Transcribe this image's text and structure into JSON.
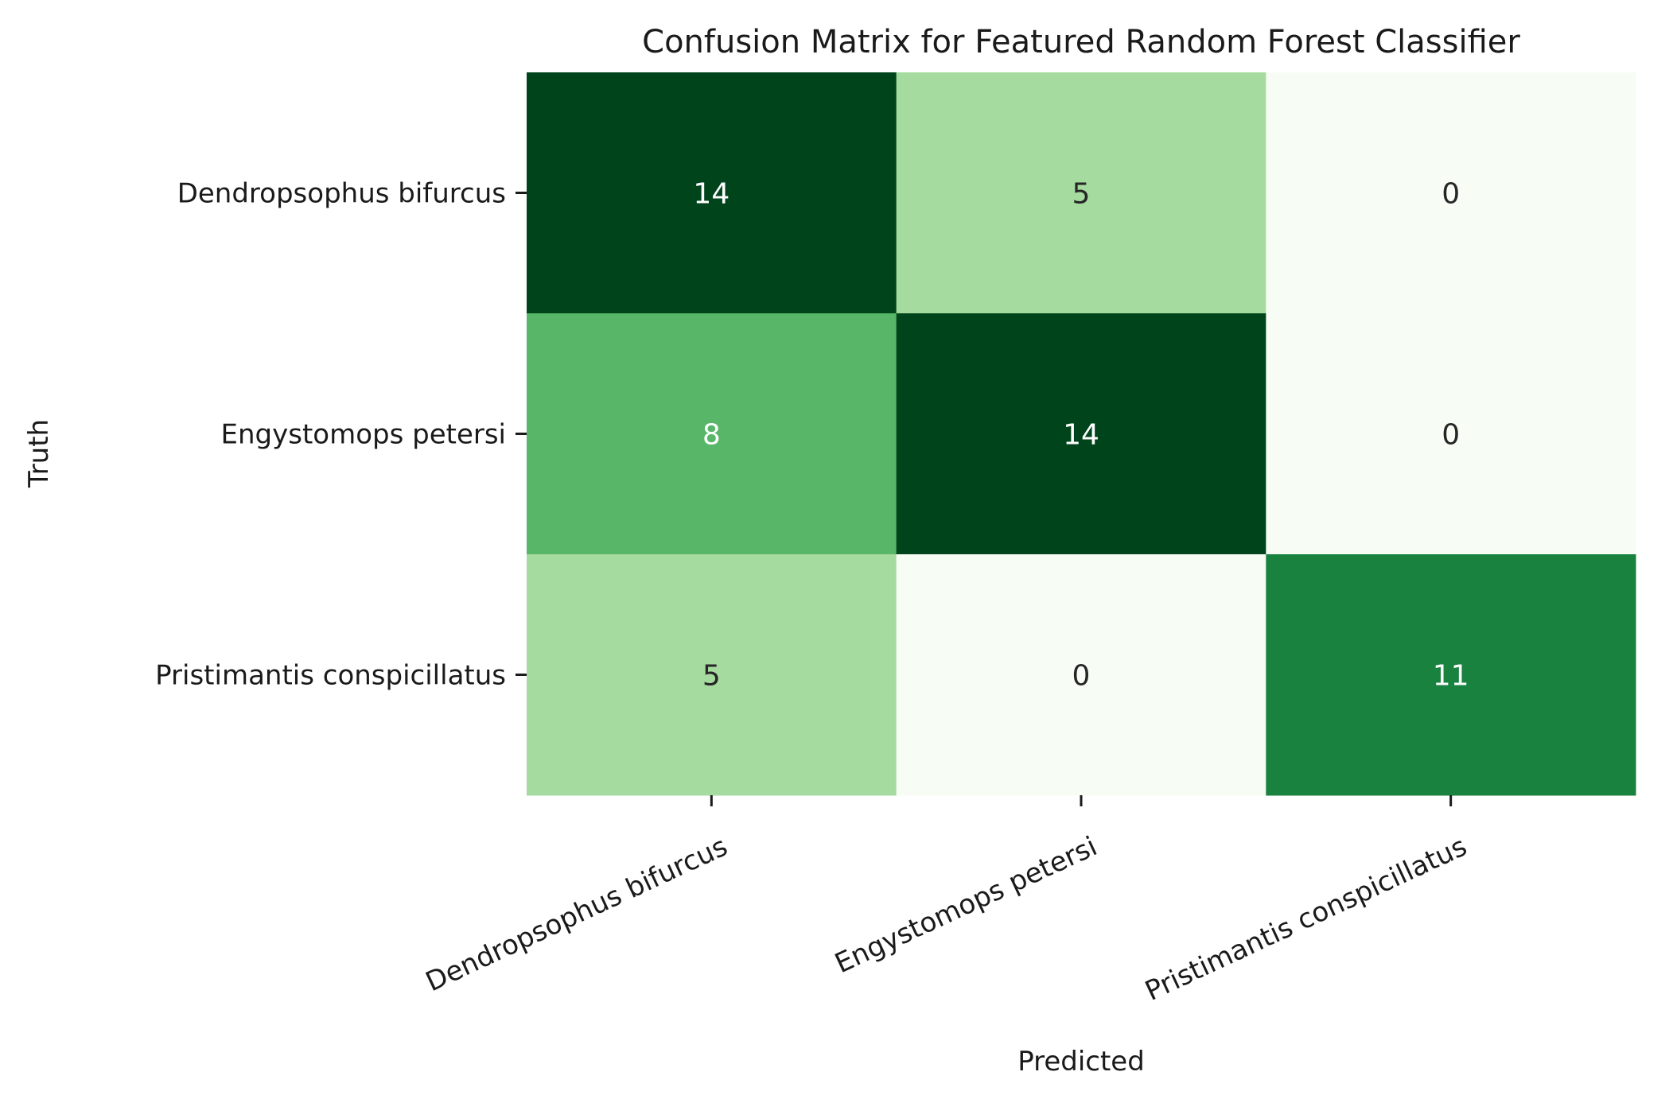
{
  "chart_data": {
    "type": "heatmap",
    "title": "Confusion Matrix for Featured Random Forest Classifier",
    "xlabel": "Predicted",
    "ylabel": "Truth",
    "x_categories": [
      "Dendropsophus bifurcus",
      "Engystomops petersi",
      "Pristimantis conspicillatus"
    ],
    "y_categories": [
      "Dendropsophus bifurcus",
      "Engystomops petersi",
      "Pristimantis conspicillatus"
    ],
    "values": [
      [
        14,
        5,
        0
      ],
      [
        8,
        14,
        0
      ],
      [
        5,
        0,
        11
      ]
    ],
    "colormap": "Greens",
    "vmin": 0,
    "vmax": 14,
    "colorbar": false,
    "annotations": true,
    "grid": false
  }
}
